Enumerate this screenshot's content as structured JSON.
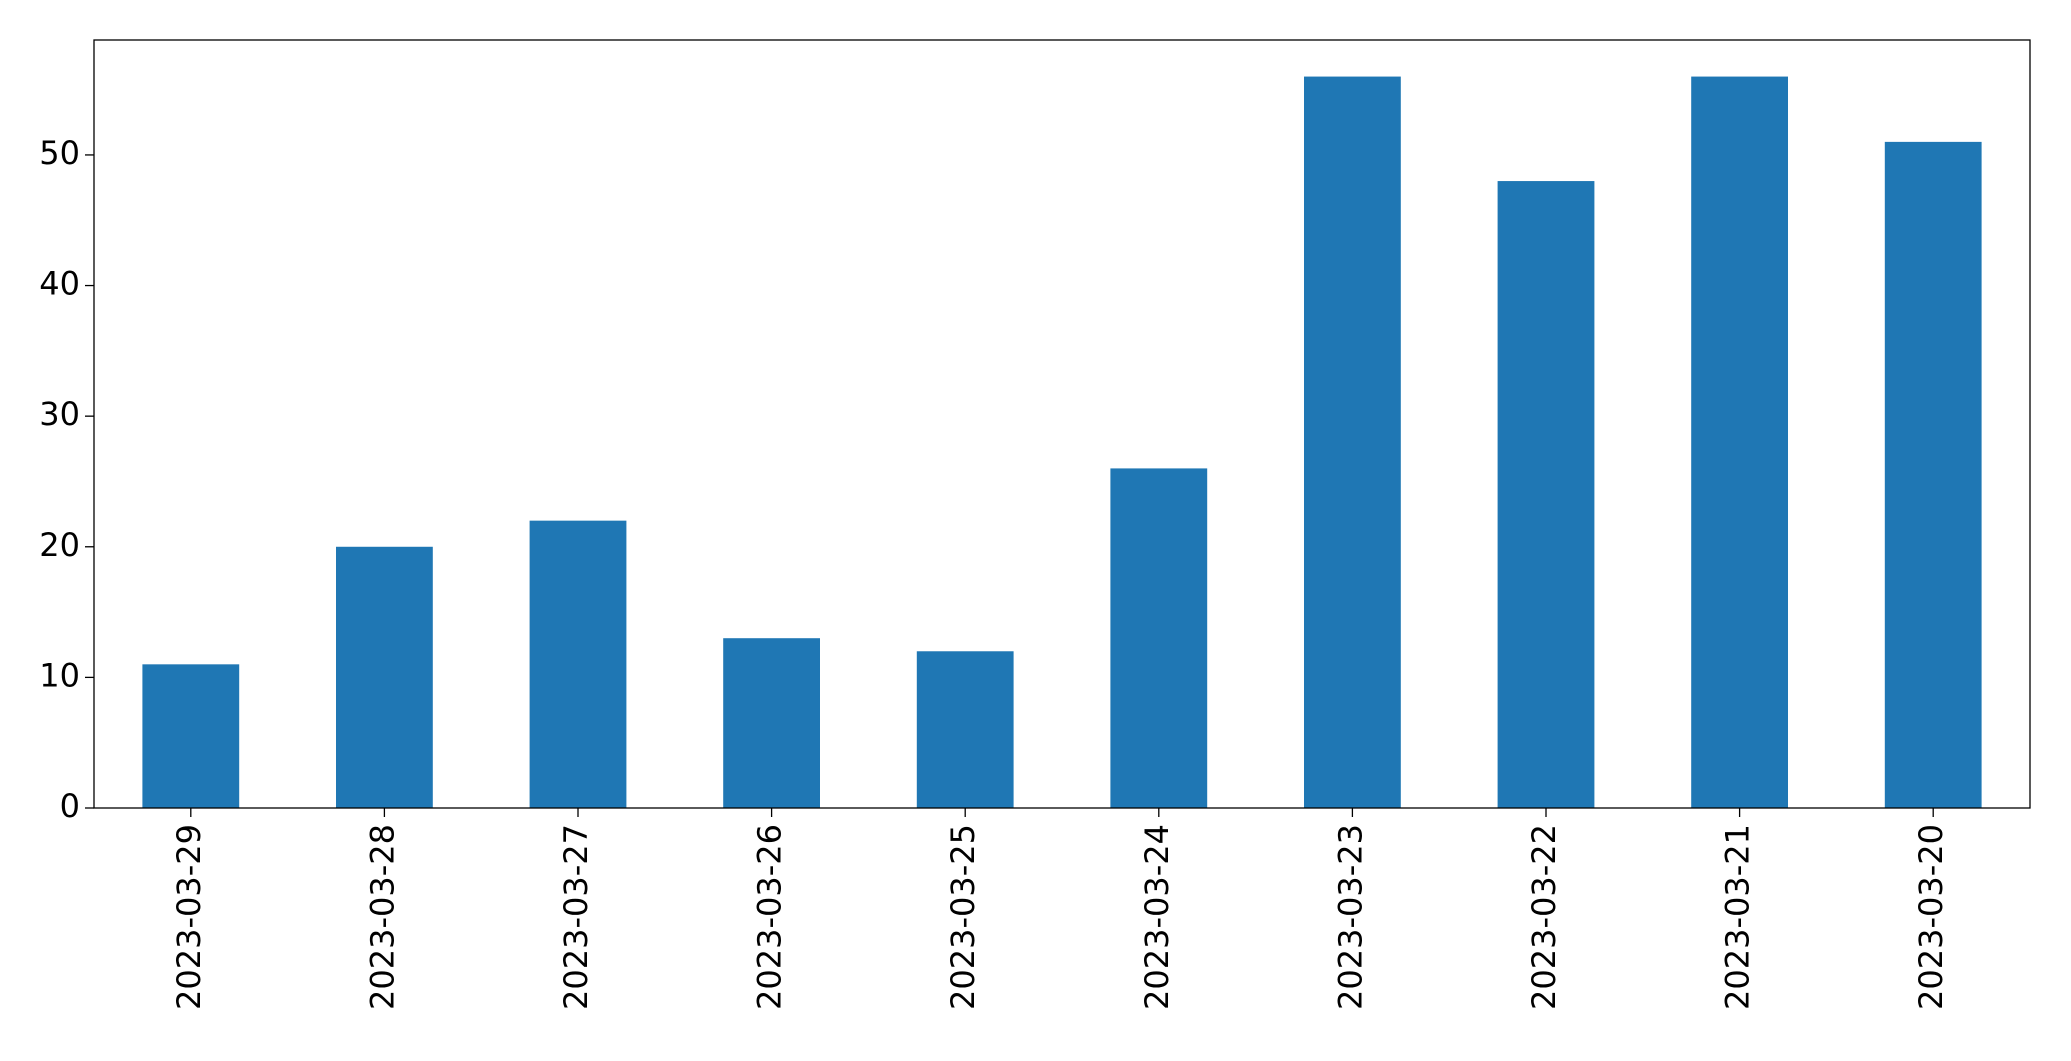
{
  "chart_data": {
    "type": "bar",
    "categories": [
      "2023-03-29",
      "2023-03-28",
      "2023-03-27",
      "2023-03-26",
      "2023-03-25",
      "2023-03-24",
      "2023-03-23",
      "2023-03-22",
      "2023-03-21",
      "2023-03-20"
    ],
    "values": [
      11,
      20,
      22,
      13,
      12,
      26,
      56,
      48,
      56,
      51
    ],
    "color": "#1f77b4",
    "ylim": [
      0,
      58.8
    ],
    "yticks": [
      0,
      10,
      20,
      30,
      40,
      50
    ],
    "grid": false
  }
}
